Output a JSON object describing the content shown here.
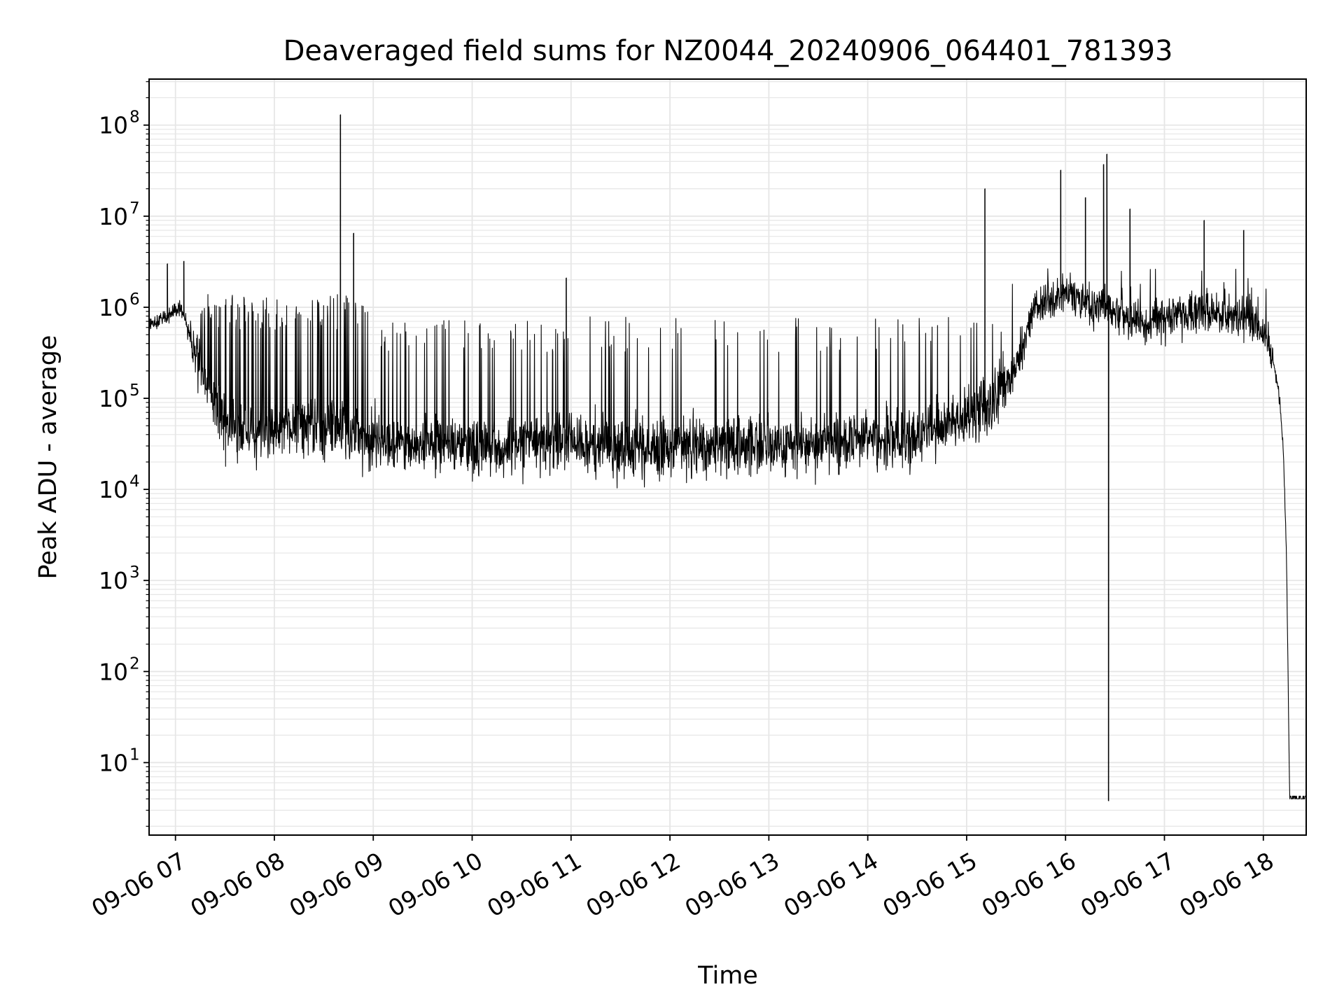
{
  "chart_data": {
    "type": "line",
    "title": "Deaveraged field sums for NZ0044_20240906_064401_781393",
    "xlabel": "Time",
    "ylabel": "Peak ADU - average",
    "yscale": "log",
    "grid": true,
    "legend": "none",
    "line_color": "#000000",
    "grid_color": "#e6e6e6",
    "xlim": [
      "09-06 06:44",
      "09-06 18:26"
    ],
    "ylim": [
      1.6,
      320000000
    ],
    "x_ticks": [
      "09-06 07",
      "09-06 08",
      "09-06 09",
      "09-06 10",
      "09-06 11",
      "09-06 12",
      "09-06 13",
      "09-06 14",
      "09-06 15",
      "09-06 16",
      "09-06 17",
      "09-06 18"
    ],
    "y_tick_labels": [
      {
        "base": "10",
        "exp": "1"
      },
      {
        "base": "10",
        "exp": "2"
      },
      {
        "base": "10",
        "exp": "3"
      },
      {
        "base": "10",
        "exp": "4"
      },
      {
        "base": "10",
        "exp": "5"
      },
      {
        "base": "10",
        "exp": "6"
      },
      {
        "base": "10",
        "exp": "7"
      },
      {
        "base": "10",
        "exp": "8"
      }
    ],
    "series": [
      {
        "x": [
          "09-06 06:44",
          "09-06 06:50",
          "09-06 06:55",
          "09-06 07:00",
          "09-06 07:05",
          "09-06 07:10",
          "09-06 07:15",
          "09-06 07:20",
          "09-06 07:25",
          "09-06 07:30",
          "09-06 07:35",
          "09-06 07:45",
          "09-06 08:00",
          "09-06 08:15",
          "09-06 08:30",
          "09-06 08:40",
          "09-06 08:50",
          "09-06 09:00",
          "09-06 09:30",
          "09-06 10:00",
          "09-06 10:30",
          "09-06 11:00",
          "09-06 11:30",
          "09-06 12:00",
          "09-06 12:30",
          "09-06 13:00",
          "09-06 13:30",
          "09-06 14:00",
          "09-06 14:30",
          "09-06 15:00",
          "09-06 15:15",
          "09-06 15:30",
          "09-06 15:40",
          "09-06 15:50",
          "09-06 16:00",
          "09-06 16:10",
          "09-06 16:20",
          "09-06 16:30",
          "09-06 16:40",
          "09-06 17:00",
          "09-06 17:20",
          "09-06 17:40",
          "09-06 17:55",
          "09-06 18:00",
          "09-06 18:04",
          "09-06 18:07",
          "09-06 18:10",
          "09-06 18:12",
          "09-06 18:14",
          "09-06 18:16",
          "09-06 18:26"
        ],
        "y": [
          600000,
          750000,
          800000,
          950000,
          850000,
          400000,
          250000,
          120000,
          80000,
          55000,
          45000,
          40000,
          45000,
          50000,
          48000,
          45000,
          40000,
          35000,
          32000,
          28000,
          30000,
          32000,
          28000,
          30000,
          32000,
          30000,
          32000,
          35000,
          38000,
          60000,
          90000,
          200000,
          1000000,
          1300000,
          1400000,
          1200000,
          1000000,
          900000,
          700000,
          800000,
          850000,
          800000,
          700000,
          500000,
          350000,
          200000,
          100000,
          30000,
          2000,
          4,
          4
        ]
      }
    ],
    "spikes": [
      {
        "x": "09-06 06:55",
        "y": 3000000
      },
      {
        "x": "09-06 07:05",
        "y": 3200000
      },
      {
        "x": "09-06 08:40",
        "y": 130000000
      },
      {
        "x": "09-06 08:48",
        "y": 6500000
      },
      {
        "x": "09-06 10:57",
        "y": 2100000
      },
      {
        "x": "09-06 15:11",
        "y": 20000000
      },
      {
        "x": "09-06 15:57",
        "y": 32000000
      },
      {
        "x": "09-06 16:12",
        "y": 16000000
      },
      {
        "x": "09-06 16:23",
        "y": 37000000
      },
      {
        "x": "09-06 16:25",
        "y": 48000000
      },
      {
        "x": "09-06 16:39",
        "y": 12000000
      },
      {
        "x": "09-06 17:24",
        "y": 9000000
      },
      {
        "x": "09-06 17:48",
        "y": 7000000
      }
    ],
    "dips": [
      {
        "x": "09-06 16:26",
        "y": 3.8
      }
    ]
  }
}
